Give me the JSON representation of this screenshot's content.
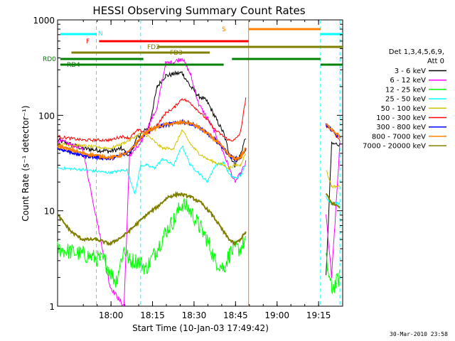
{
  "chart_data": {
    "type": "line",
    "title": "HESSI Observing Summary Count Rates",
    "xlabel": "Start Time (10-Jan-03 17:49:42)",
    "ylabel": "Count Rate (s⁻¹ detector⁻¹)",
    "yscale": "log",
    "xlim": [
      -9,
      94
    ],
    "ylim": [
      1,
      1000
    ],
    "x_units": "minutes after 17:49:42",
    "x_ticks": [
      {
        "label": "18:00",
        "value": 10.3
      },
      {
        "label": "18:15",
        "value": 25.3
      },
      {
        "label": "18:30",
        "value": 40.3
      },
      {
        "label": "18:45",
        "value": 55.3
      },
      {
        "label": "19:00",
        "value": 70.3
      },
      {
        "label": "19:15",
        "value": 85.3
      }
    ],
    "y_ticks": [
      {
        "label": "1",
        "value": 1
      },
      {
        "label": "10",
        "value": 10
      },
      {
        "label": "100",
        "value": 100
      },
      {
        "label": "1000",
        "value": 1000
      }
    ],
    "legend": {
      "position": "right",
      "header": [
        "Det 1,3,4,5,6,9,",
        "Att 0"
      ],
      "entries": [
        {
          "label": "3 - 6 keV",
          "color": "#000000"
        },
        {
          "label": "6 - 12 keV",
          "color": "#ff00ff"
        },
        {
          "label": "12 - 25 keV",
          "color": "#00ff00"
        },
        {
          "label": "25 - 50 keV",
          "color": "#00ffff"
        },
        {
          "label": "50 - 100 keV",
          "color": "#d4c400"
        },
        {
          "label": "100 - 300 keV",
          "color": "#ff0000"
        },
        {
          "label": "300 - 800 keV",
          "color": "#0000ff"
        },
        {
          "label": "800 - 7000 keV",
          "color": "#ff8000"
        },
        {
          "label": "7000 - 20000 keV",
          "color": "#808000"
        }
      ]
    },
    "series": [
      {
        "name": "3 - 6 keV",
        "color": "#000000",
        "points": [
          [
            -9,
            55
          ],
          [
            0,
            45
          ],
          [
            10,
            42
          ],
          [
            14,
            45
          ],
          [
            17,
            38
          ],
          [
            20,
            60
          ],
          [
            24,
            75
          ],
          [
            27,
            200
          ],
          [
            30,
            260
          ],
          [
            33,
            270
          ],
          [
            36,
            280
          ],
          [
            39,
            200
          ],
          [
            42,
            160
          ],
          [
            45,
            140
          ],
          [
            48,
            95
          ],
          [
            51,
            65
          ],
          [
            53,
            40
          ],
          [
            55,
            30
          ],
          [
            57,
            38
          ],
          [
            59,
            60
          ],
          [
            61,
            null
          ],
          [
            87,
            null
          ],
          [
            88,
            2
          ],
          [
            90,
            50
          ],
          [
            93,
            50
          ]
        ]
      },
      {
        "name": "6 - 12 keV",
        "color": "#ff00ff",
        "points": [
          [
            -9,
            55
          ],
          [
            0,
            45
          ],
          [
            10,
            1.6
          ],
          [
            13,
            1.2
          ],
          [
            15,
            1.0
          ],
          [
            17,
            38
          ],
          [
            21,
            50
          ],
          [
            24,
            80
          ],
          [
            27,
            120
          ],
          [
            30,
            350
          ],
          [
            33,
            360
          ],
          [
            36,
            400
          ],
          [
            39,
            270
          ],
          [
            42,
            130
          ],
          [
            45,
            95
          ],
          [
            48,
            65
          ],
          [
            51,
            40
          ],
          [
            53,
            28
          ],
          [
            55,
            20
          ],
          [
            57,
            24
          ],
          [
            59,
            32
          ],
          [
            61,
            null
          ],
          [
            87,
            null
          ],
          [
            88,
            9
          ],
          [
            90,
            2
          ],
          [
            93,
            50
          ]
        ]
      },
      {
        "name": "12 - 25 keV",
        "color": "#00ff00",
        "points": [
          [
            -9,
            4
          ],
          [
            0,
            3.5
          ],
          [
            8,
            3
          ],
          [
            12,
            1.8
          ],
          [
            15,
            4
          ],
          [
            17,
            3
          ],
          [
            20,
            3
          ],
          [
            23,
            2.5
          ],
          [
            27,
            4
          ],
          [
            30,
            6
          ],
          [
            33,
            8
          ],
          [
            36,
            12
          ],
          [
            39,
            10
          ],
          [
            42,
            7
          ],
          [
            45,
            5
          ],
          [
            48,
            3
          ],
          [
            51,
            2.5
          ],
          [
            53,
            3.5
          ],
          [
            55,
            4
          ],
          [
            57,
            4
          ],
          [
            59,
            5
          ],
          [
            61,
            null
          ],
          [
            87,
            null
          ],
          [
            88,
            3
          ],
          [
            90,
            1.5
          ],
          [
            93,
            2
          ]
        ]
      },
      {
        "name": "25 - 50 keV",
        "color": "#00ffff",
        "points": [
          [
            -9,
            28
          ],
          [
            0,
            27
          ],
          [
            10,
            25
          ],
          [
            16,
            27
          ],
          [
            19,
            15
          ],
          [
            21,
            30
          ],
          [
            23,
            30
          ],
          [
            26,
            28
          ],
          [
            29,
            35
          ],
          [
            33,
            30
          ],
          [
            36,
            48
          ],
          [
            39,
            30
          ],
          [
            42,
            25
          ],
          [
            45,
            20
          ],
          [
            48,
            30
          ],
          [
            51,
            32
          ],
          [
            53,
            24
          ],
          [
            55,
            22
          ],
          [
            57,
            23
          ],
          [
            59,
            30
          ],
          [
            61,
            null
          ],
          [
            87,
            null
          ],
          [
            88,
            14
          ],
          [
            90,
            12
          ],
          [
            93,
            12
          ]
        ]
      },
      {
        "name": "50 - 100 keV",
        "color": "#d4c400",
        "points": [
          [
            -9,
            50
          ],
          [
            0,
            48
          ],
          [
            10,
            45
          ],
          [
            14,
            50
          ],
          [
            17,
            55
          ],
          [
            21,
            65
          ],
          [
            24,
            60
          ],
          [
            27,
            50
          ],
          [
            29,
            45
          ],
          [
            33,
            45
          ],
          [
            36,
            70
          ],
          [
            39,
            50
          ],
          [
            42,
            40
          ],
          [
            45,
            35
          ],
          [
            48,
            32
          ],
          [
            51,
            30
          ],
          [
            53,
            28
          ],
          [
            55,
            30
          ],
          [
            57,
            30
          ],
          [
            59,
            40
          ],
          [
            61,
            null
          ],
          [
            87,
            null
          ],
          [
            88,
            27
          ],
          [
            90,
            18
          ],
          [
            93,
            18
          ]
        ]
      },
      {
        "name": "100 - 300 keV",
        "color": "#ff0000",
        "points": [
          [
            -9,
            60
          ],
          [
            0,
            55
          ],
          [
            10,
            55
          ],
          [
            14,
            60
          ],
          [
            17,
            58
          ],
          [
            20,
            70
          ],
          [
            24,
            65
          ],
          [
            27,
            80
          ],
          [
            30,
            105
          ],
          [
            33,
            120
          ],
          [
            36,
            150
          ],
          [
            39,
            135
          ],
          [
            42,
            110
          ],
          [
            45,
            90
          ],
          [
            48,
            70
          ],
          [
            51,
            60
          ],
          [
            53,
            55
          ],
          [
            55,
            55
          ],
          [
            57,
            65
          ],
          [
            59,
            150
          ],
          [
            61,
            null
          ],
          [
            87,
            null
          ],
          [
            88,
            80
          ],
          [
            90,
            70
          ],
          [
            93,
            55
          ]
        ]
      },
      {
        "name": "300 - 800 keV",
        "color": "#0000ff",
        "points": [
          [
            -9,
            45
          ],
          [
            0,
            38
          ],
          [
            10,
            35
          ],
          [
            14,
            38
          ],
          [
            17,
            42
          ],
          [
            21,
            58
          ],
          [
            24,
            70
          ],
          [
            27,
            75
          ],
          [
            30,
            80
          ],
          [
            33,
            82
          ],
          [
            36,
            85
          ],
          [
            39,
            82
          ],
          [
            42,
            75
          ],
          [
            45,
            65
          ],
          [
            48,
            55
          ],
          [
            51,
            45
          ],
          [
            53,
            38
          ],
          [
            55,
            35
          ],
          [
            57,
            36
          ],
          [
            59,
            45
          ],
          [
            61,
            null
          ],
          [
            87,
            null
          ],
          [
            88,
            80
          ],
          [
            90,
            70
          ],
          [
            93,
            58
          ]
        ]
      },
      {
        "name": "800 - 7000 keV",
        "color": "#ff8000",
        "points": [
          [
            -9,
            48
          ],
          [
            0,
            40
          ],
          [
            10,
            36
          ],
          [
            14,
            38
          ],
          [
            17,
            42
          ],
          [
            21,
            58
          ],
          [
            24,
            70
          ],
          [
            27,
            75
          ],
          [
            30,
            80
          ],
          [
            33,
            82
          ],
          [
            36,
            85
          ],
          [
            39,
            82
          ],
          [
            42,
            75
          ],
          [
            45,
            65
          ],
          [
            48,
            55
          ],
          [
            51,
            45
          ],
          [
            53,
            38
          ],
          [
            55,
            35
          ],
          [
            57,
            36
          ],
          [
            59,
            45
          ],
          [
            61,
            null
          ],
          [
            87,
            null
          ],
          [
            88,
            80
          ],
          [
            90,
            72
          ],
          [
            93,
            60
          ]
        ]
      },
      {
        "name": "7000 - 20000 keV",
        "color": "#808000",
        "points": [
          [
            -9,
            9
          ],
          [
            -4,
            6
          ],
          [
            0,
            5
          ],
          [
            5,
            5
          ],
          [
            10,
            4.5
          ],
          [
            15,
            5.5
          ],
          [
            19,
            7
          ],
          [
            23,
            9
          ],
          [
            27,
            11
          ],
          [
            31,
            14
          ],
          [
            35,
            15
          ],
          [
            39,
            14
          ],
          [
            43,
            12
          ],
          [
            47,
            9
          ],
          [
            51,
            6
          ],
          [
            53,
            5
          ],
          [
            55,
            4.5
          ],
          [
            57,
            5
          ],
          [
            59,
            6
          ],
          [
            61,
            null
          ],
          [
            87,
            null
          ],
          [
            88,
            15
          ],
          [
            90,
            12
          ],
          [
            93,
            11
          ]
        ]
      }
    ],
    "attenuator_state": [
      {
        "label": "N",
        "color": "#00ffff",
        "start": -8,
        "end": 5
      },
      {
        "label": "N",
        "color": "#00ffff",
        "start": 86,
        "end": 94
      },
      {
        "label": "S",
        "color": "#ff8000",
        "start": 60,
        "end": 86
      }
    ],
    "flag_bars": [
      {
        "label": "F",
        "color": "#ff0000",
        "start": 6,
        "end": 60
      },
      {
        "label": "FD2",
        "color": "#808000",
        "start": 27,
        "end": 94
      },
      {
        "label": "FD3",
        "color": "#808000",
        "start": -4,
        "end": 46
      },
      {
        "label": "RD0",
        "color": "#008000",
        "start": -8,
        "end": 22
      },
      {
        "label": "RD0",
        "color": "#008000",
        "start": 54,
        "end": 86
      },
      {
        "label": "RD4",
        "color": "#008000",
        "start": -8,
        "end": 22
      },
      {
        "label": "RD4",
        "color": "#008000",
        "start": 22,
        "end": 51
      },
      {
        "label": "RD4",
        "color": "#008000",
        "start": 86,
        "end": 94
      }
    ],
    "vertical_markers": [
      {
        "value": 5,
        "color": "#00ffff",
        "style": "dashed"
      },
      {
        "value": 21,
        "color": "#00ffff",
        "style": "dashed"
      },
      {
        "value": 60,
        "color": "#ff8000",
        "style": "solid"
      },
      {
        "value": 86,
        "color": "#00ffff",
        "style": "dashed"
      },
      {
        "value": 93,
        "color": "#00ffff",
        "style": "dashed"
      }
    ],
    "grid": false
  },
  "footer": {
    "date": "30-Mar-2010 23:58"
  }
}
